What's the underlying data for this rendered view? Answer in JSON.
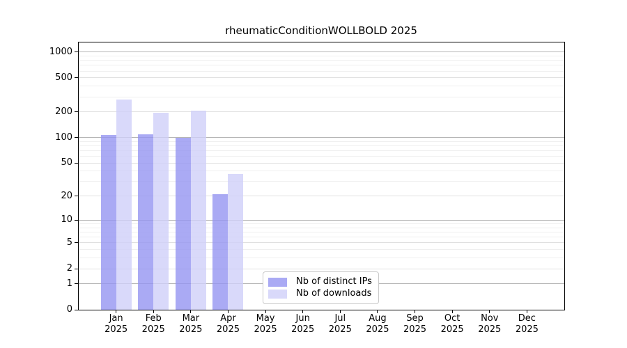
{
  "chart_data": {
    "type": "bar",
    "title": "rheumaticConditionWOLLBOLD 2025",
    "year": "2025",
    "categories": [
      "Jan",
      "Feb",
      "Mar",
      "Apr",
      "May",
      "Jun",
      "Jul",
      "Aug",
      "Sep",
      "Oct",
      "Nov",
      "Dec"
    ],
    "series": [
      {
        "name": "Nb of distinct IPs",
        "color": "#aaaaf4",
        "fill": "rgba(149,149,241,0.8)",
        "values": [
          108,
          110,
          100,
          21,
          0,
          0,
          0,
          0,
          0,
          0,
          0,
          0
        ]
      },
      {
        "name": "Nb of downloads",
        "color": "#d9d9fa",
        "fill": "rgba(208,208,249,0.8)",
        "values": [
          280,
          195,
          205,
          37,
          0,
          0,
          0,
          0,
          0,
          0,
          0,
          0
        ]
      }
    ],
    "y_axis": {
      "scale": "log1p",
      "ticks": [
        0,
        1,
        2,
        5,
        10,
        20,
        50,
        100,
        200,
        500,
        1000
      ],
      "range": [
        0,
        1300
      ]
    },
    "x_axis": {
      "label_lines": 2
    },
    "grid": {
      "on": true,
      "major_ticks": [
        1,
        10,
        100,
        1000
      ],
      "mid_ticks": [
        2,
        5,
        20,
        50,
        200,
        500
      ],
      "minor_multiples": [
        3,
        4,
        6,
        7,
        8,
        9
      ],
      "major_color": "#b5b5b5",
      "mid_color": "#e0e0e0",
      "minor_color": "#efefef"
    },
    "legend": {
      "position": "lower center",
      "border_color": "#c9c9c9"
    },
    "background": "#ffffff"
  }
}
